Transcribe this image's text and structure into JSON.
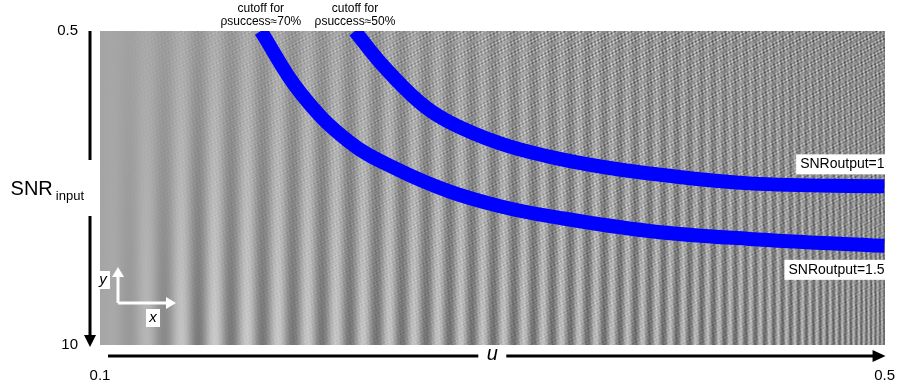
{
  "chart_data": {
    "type": "line",
    "x_label": "u",
    "y_label": "SNR input",
    "xlim": [
      0.1,
      0.5
    ],
    "xticks": [
      0.1,
      0.5
    ],
    "ylim": [
      0.5,
      10
    ],
    "yticks": [
      0.5,
      10
    ],
    "grid": false,
    "inset_axis_labels": {
      "x": "x",
      "y": "y"
    },
    "series": [
      {
        "name": "SNRoutput=1",
        "color": "#0000ff",
        "line_style": "solid",
        "cutoff_label": "cutoff for ρsuccess≈50%",
        "x": [
          0.23,
          0.243,
          0.263,
          0.278,
          0.304,
          0.329,
          0.355,
          0.38,
          0.431,
          0.5
        ],
        "values": [
          0.5,
          1.46,
          2.66,
          3.25,
          3.9,
          4.3,
          4.6,
          4.81,
          5.11,
          5.2
        ]
      },
      {
        "name": "SNRoutput=1.5",
        "color": "#0000ff",
        "line_style": "solid",
        "cutoff_label": "cutoff for ρsuccess≈70%",
        "x": [
          0.182,
          0.202,
          0.227,
          0.252,
          0.278,
          0.304,
          0.329,
          0.38,
          0.431,
          0.5
        ],
        "values": [
          0.5,
          2.36,
          3.85,
          4.7,
          5.35,
          5.8,
          6.1,
          6.55,
          6.79,
          7.0
        ]
      }
    ]
  }
}
